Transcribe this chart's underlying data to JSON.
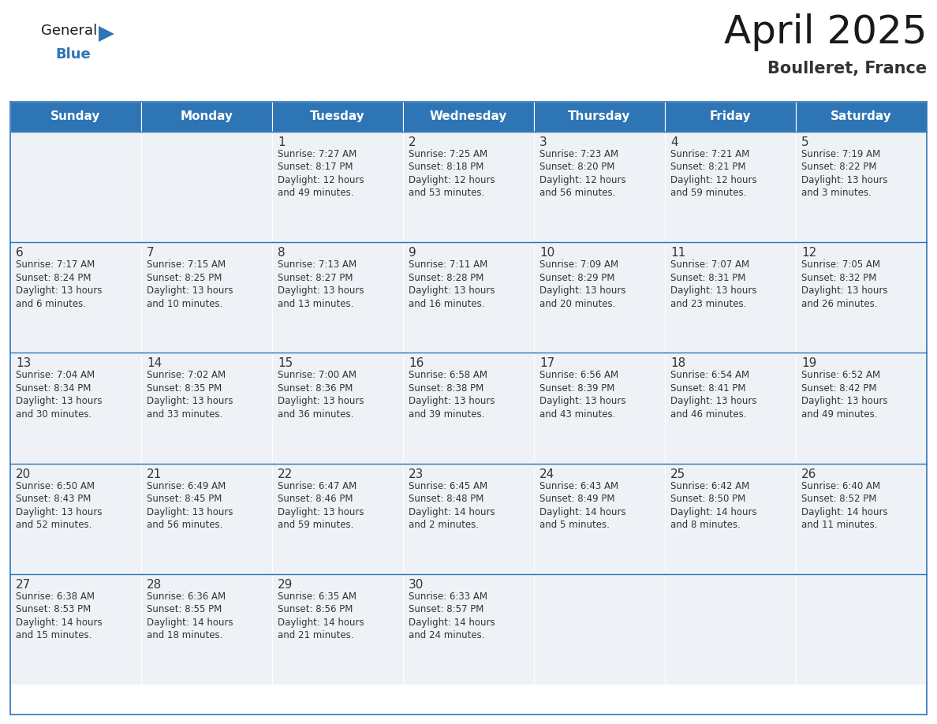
{
  "title": "April 2025",
  "subtitle": "Boulleret, France",
  "header_color": "#2E75B6",
  "header_text_color": "#FFFFFF",
  "cell_bg_color": "#EEF2F7",
  "cell_bg_empty": "#E8EEF4",
  "text_color": "#333333",
  "line_color": "#2E75B6",
  "logo_general_color": "#1a1a1a",
  "logo_blue_color": "#2E75B6",
  "logo_triangle_color": "#2E75B6",
  "days_of_week": [
    "Sunday",
    "Monday",
    "Tuesday",
    "Wednesday",
    "Thursday",
    "Friday",
    "Saturday"
  ],
  "calendar": [
    [
      {
        "day": "",
        "info": ""
      },
      {
        "day": "",
        "info": ""
      },
      {
        "day": "1",
        "info": "Sunrise: 7:27 AM\nSunset: 8:17 PM\nDaylight: 12 hours\nand 49 minutes."
      },
      {
        "day": "2",
        "info": "Sunrise: 7:25 AM\nSunset: 8:18 PM\nDaylight: 12 hours\nand 53 minutes."
      },
      {
        "day": "3",
        "info": "Sunrise: 7:23 AM\nSunset: 8:20 PM\nDaylight: 12 hours\nand 56 minutes."
      },
      {
        "day": "4",
        "info": "Sunrise: 7:21 AM\nSunset: 8:21 PM\nDaylight: 12 hours\nand 59 minutes."
      },
      {
        "day": "5",
        "info": "Sunrise: 7:19 AM\nSunset: 8:22 PM\nDaylight: 13 hours\nand 3 minutes."
      }
    ],
    [
      {
        "day": "6",
        "info": "Sunrise: 7:17 AM\nSunset: 8:24 PM\nDaylight: 13 hours\nand 6 minutes."
      },
      {
        "day": "7",
        "info": "Sunrise: 7:15 AM\nSunset: 8:25 PM\nDaylight: 13 hours\nand 10 minutes."
      },
      {
        "day": "8",
        "info": "Sunrise: 7:13 AM\nSunset: 8:27 PM\nDaylight: 13 hours\nand 13 minutes."
      },
      {
        "day": "9",
        "info": "Sunrise: 7:11 AM\nSunset: 8:28 PM\nDaylight: 13 hours\nand 16 minutes."
      },
      {
        "day": "10",
        "info": "Sunrise: 7:09 AM\nSunset: 8:29 PM\nDaylight: 13 hours\nand 20 minutes."
      },
      {
        "day": "11",
        "info": "Sunrise: 7:07 AM\nSunset: 8:31 PM\nDaylight: 13 hours\nand 23 minutes."
      },
      {
        "day": "12",
        "info": "Sunrise: 7:05 AM\nSunset: 8:32 PM\nDaylight: 13 hours\nand 26 minutes."
      }
    ],
    [
      {
        "day": "13",
        "info": "Sunrise: 7:04 AM\nSunset: 8:34 PM\nDaylight: 13 hours\nand 30 minutes."
      },
      {
        "day": "14",
        "info": "Sunrise: 7:02 AM\nSunset: 8:35 PM\nDaylight: 13 hours\nand 33 minutes."
      },
      {
        "day": "15",
        "info": "Sunrise: 7:00 AM\nSunset: 8:36 PM\nDaylight: 13 hours\nand 36 minutes."
      },
      {
        "day": "16",
        "info": "Sunrise: 6:58 AM\nSunset: 8:38 PM\nDaylight: 13 hours\nand 39 minutes."
      },
      {
        "day": "17",
        "info": "Sunrise: 6:56 AM\nSunset: 8:39 PM\nDaylight: 13 hours\nand 43 minutes."
      },
      {
        "day": "18",
        "info": "Sunrise: 6:54 AM\nSunset: 8:41 PM\nDaylight: 13 hours\nand 46 minutes."
      },
      {
        "day": "19",
        "info": "Sunrise: 6:52 AM\nSunset: 8:42 PM\nDaylight: 13 hours\nand 49 minutes."
      }
    ],
    [
      {
        "day": "20",
        "info": "Sunrise: 6:50 AM\nSunset: 8:43 PM\nDaylight: 13 hours\nand 52 minutes."
      },
      {
        "day": "21",
        "info": "Sunrise: 6:49 AM\nSunset: 8:45 PM\nDaylight: 13 hours\nand 56 minutes."
      },
      {
        "day": "22",
        "info": "Sunrise: 6:47 AM\nSunset: 8:46 PM\nDaylight: 13 hours\nand 59 minutes."
      },
      {
        "day": "23",
        "info": "Sunrise: 6:45 AM\nSunset: 8:48 PM\nDaylight: 14 hours\nand 2 minutes."
      },
      {
        "day": "24",
        "info": "Sunrise: 6:43 AM\nSunset: 8:49 PM\nDaylight: 14 hours\nand 5 minutes."
      },
      {
        "day": "25",
        "info": "Sunrise: 6:42 AM\nSunset: 8:50 PM\nDaylight: 14 hours\nand 8 minutes."
      },
      {
        "day": "26",
        "info": "Sunrise: 6:40 AM\nSunset: 8:52 PM\nDaylight: 14 hours\nand 11 minutes."
      }
    ],
    [
      {
        "day": "27",
        "info": "Sunrise: 6:38 AM\nSunset: 8:53 PM\nDaylight: 14 hours\nand 15 minutes."
      },
      {
        "day": "28",
        "info": "Sunrise: 6:36 AM\nSunset: 8:55 PM\nDaylight: 14 hours\nand 18 minutes."
      },
      {
        "day": "29",
        "info": "Sunrise: 6:35 AM\nSunset: 8:56 PM\nDaylight: 14 hours\nand 21 minutes."
      },
      {
        "day": "30",
        "info": "Sunrise: 6:33 AM\nSunset: 8:57 PM\nDaylight: 14 hours\nand 24 minutes."
      },
      {
        "day": "",
        "info": ""
      },
      {
        "day": "",
        "info": ""
      },
      {
        "day": "",
        "info": ""
      }
    ]
  ],
  "title_fontsize": 36,
  "subtitle_fontsize": 15,
  "header_fontsize": 11,
  "day_num_fontsize": 11,
  "info_fontsize": 8.5
}
